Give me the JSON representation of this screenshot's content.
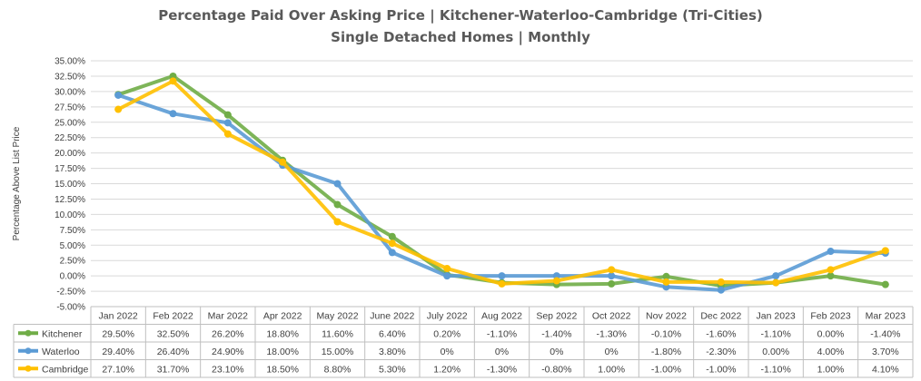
{
  "chart_data": {
    "type": "line",
    "title": "Percentage Paid Over Asking Price | Kitchener-Waterloo-Cambridge (Tri-Cities)",
    "subtitle": "Single Detached Homes | Monthly",
    "ylabel": "Percentage Above List Price",
    "xlabel": "",
    "ylim": [
      -5,
      35
    ],
    "ystep": 2.5,
    "grid": true,
    "legend": "data-table",
    "categories": [
      "Jan 2022",
      "Feb 2022",
      "Mar 2022",
      "Apr 2022",
      "May 2022",
      "June 2022",
      "July 2022",
      "Aug 2022",
      "Sep 2022",
      "Oct 2022",
      "Nov 2022",
      "Dec 2022",
      "Jan 2023",
      "Feb 2023",
      "Mar 2023"
    ],
    "y_tick_labels": [
      "35.00%",
      "32.50%",
      "30.00%",
      "27.50%",
      "25.00%",
      "22.50%",
      "20.00%",
      "17.50%",
      "15.00%",
      "12.50%",
      "10.00%",
      "7.50%",
      "5.00%",
      "2.50%",
      "0.00%",
      "-2.50%",
      "-5.00%"
    ],
    "series": [
      {
        "name": "Kitchener",
        "color": "#70AD47",
        "values": [
          29.5,
          32.5,
          26.2,
          18.8,
          11.6,
          6.4,
          0.2,
          -1.1,
          -1.4,
          -1.3,
          -0.1,
          -1.6,
          -1.1,
          0.0,
          -1.4
        ],
        "labels": [
          "29.50%",
          "32.50%",
          "26.20%",
          "18.80%",
          "11.60%",
          "6.40%",
          "0.20%",
          "-1.10%",
          "-1.40%",
          "-1.30%",
          "-0.10%",
          "-1.60%",
          "-1.10%",
          "0.00%",
          "-1.40%"
        ]
      },
      {
        "name": "Waterloo",
        "color": "#5B9BD5",
        "values": [
          29.4,
          26.4,
          24.9,
          18.0,
          15.0,
          3.8,
          0,
          0,
          0,
          0,
          -1.8,
          -2.3,
          0.0,
          4.0,
          3.7
        ],
        "labels": [
          "29.40%",
          "26.40%",
          "24.90%",
          "18.00%",
          "15.00%",
          "3.80%",
          "0%",
          "0%",
          "0%",
          "0%",
          "-1.80%",
          "-2.30%",
          "0.00%",
          "4.00%",
          "3.70%"
        ]
      },
      {
        "name": "Cambridge",
        "color": "#FFC000",
        "values": [
          27.1,
          31.7,
          23.1,
          18.5,
          8.8,
          5.3,
          1.2,
          -1.3,
          -0.8,
          1.0,
          -1.0,
          -1.0,
          -1.1,
          1.0,
          4.1
        ],
        "labels": [
          "27.10%",
          "31.70%",
          "23.10%",
          "18.50%",
          "8.80%",
          "5.30%",
          "1.20%",
          "-1.30%",
          "-0.80%",
          "1.00%",
          "-1.00%",
          "-1.00%",
          "-1.10%",
          "1.00%",
          "4.10%"
        ]
      }
    ]
  }
}
